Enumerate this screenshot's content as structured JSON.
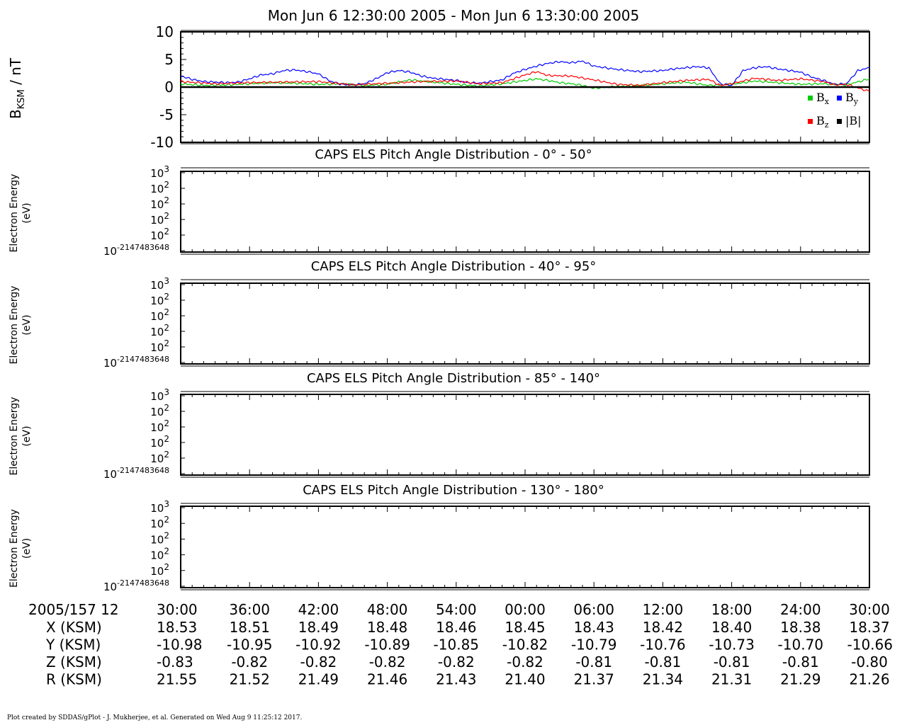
{
  "title": "Mon Jun 6 12:30:00 2005 - Mon Jun 6 13:30:00 2005",
  "footer": "Plot created by SDDAS/gPlot - J. Mukherjee, et al.  Generated on Wed Aug 9 11:25:12 2017.",
  "chart_data": [
    {
      "type": "line",
      "ylabel_main": "B",
      "ylabel_sub": "KSM",
      "ylabel_unit": " / nT",
      "ylim": [
        -10,
        10
      ],
      "yticks": [
        10,
        5,
        0,
        -5,
        -10
      ],
      "x_range_minutes": [
        0,
        60
      ],
      "legend_position": "bottom-right",
      "series": [
        {
          "name": "Bx",
          "color": "#00cc00",
          "x": [
            0,
            2,
            4,
            6,
            8,
            10,
            12,
            14,
            16,
            18,
            20,
            22,
            24,
            26,
            28,
            30,
            31,
            32,
            33,
            34,
            35,
            36,
            38,
            40,
            42,
            44,
            46,
            48,
            50,
            52,
            54,
            56,
            58,
            60
          ],
          "y": [
            0.6,
            0.3,
            0.4,
            0.6,
            0.8,
            0.7,
            0.5,
            0.6,
            0.3,
            0.5,
            1.3,
            0.9,
            0.5,
            0.2,
            0.6,
            1.2,
            1.5,
            1.2,
            0.8,
            0.6,
            0.3,
            -0.2,
            0.1,
            0.3,
            0.6,
            0.9,
            0.3,
            0.5,
            1.1,
            0.8,
            0.5,
            0.6,
            0.4,
            1.5
          ]
        },
        {
          "name": "By",
          "color": "#0000ff",
          "x": [
            0,
            1,
            2,
            3,
            4,
            5,
            6,
            7,
            8,
            9,
            10,
            11,
            12,
            13,
            14,
            15,
            16,
            17,
            18,
            19,
            20,
            21,
            22,
            23,
            24,
            25,
            26,
            27,
            28,
            29,
            30,
            31,
            32,
            33,
            34,
            35,
            36,
            37,
            38,
            39,
            40,
            41,
            42,
            43,
            44,
            45,
            46,
            47,
            48,
            49,
            50,
            51,
            52,
            53,
            54,
            55,
            56,
            57,
            58,
            59,
            60
          ],
          "y": [
            2.0,
            1.4,
            1.0,
            0.9,
            0.8,
            0.9,
            1.5,
            2.2,
            2.4,
            3.0,
            3.1,
            2.8,
            2.4,
            1.1,
            0.5,
            0.4,
            0.6,
            1.5,
            2.6,
            3.0,
            2.7,
            2.0,
            1.6,
            1.4,
            1.2,
            0.8,
            0.7,
            1.0,
            1.3,
            2.5,
            3.2,
            3.8,
            4.3,
            4.6,
            4.4,
            4.7,
            3.8,
            3.5,
            3.2,
            3.0,
            2.8,
            2.9,
            3.0,
            3.3,
            3.5,
            3.7,
            3.5,
            0.6,
            0.3,
            3.0,
            3.5,
            3.7,
            3.3,
            3.0,
            2.7,
            1.8,
            1.2,
            0.5,
            0.6,
            3.0,
            3.5
          ]
        },
        {
          "name": "Bz",
          "color": "#ff0000",
          "x": [
            0,
            3,
            6,
            9,
            12,
            15,
            18,
            21,
            24,
            26,
            28,
            30,
            31,
            32,
            34,
            36,
            38,
            40,
            42,
            44,
            46,
            47,
            48,
            50,
            52,
            54,
            56,
            57,
            58,
            60
          ],
          "y": [
            1.0,
            0.6,
            0.8,
            0.9,
            1.0,
            0.4,
            0.7,
            1.0,
            1.1,
            0.6,
            0.8,
            2.2,
            2.8,
            2.1,
            2.0,
            1.3,
            0.5,
            0.3,
            0.8,
            1.2,
            1.4,
            0.3,
            0.6,
            1.6,
            1.2,
            1.5,
            1.0,
            0.4,
            0.5,
            -0.8
          ]
        },
        {
          "name": "|B|",
          "color": "#000000",
          "x": [
            0,
            60
          ],
          "y": [
            0,
            0
          ]
        }
      ]
    },
    {
      "type": "heatmap",
      "title": "CAPS ELS Pitch Angle Distribution - 0° - 50°",
      "ylabel": [
        "Electron Energy",
        "(eV)"
      ],
      "ytick_labels": [
        {
          "base": "10",
          "exp": "3"
        },
        {
          "base": "10",
          "exp": "2"
        },
        {
          "base": "10",
          "exp": "2"
        },
        {
          "base": "10",
          "exp": "2"
        },
        {
          "base": "10",
          "exp": "2"
        },
        {
          "base": "10",
          "exp": "-2147483648"
        }
      ]
    },
    {
      "type": "heatmap",
      "title": "CAPS ELS Pitch Angle Distribution - 40° - 95°",
      "ylabel": [
        "Electron Energy",
        "(eV)"
      ],
      "ytick_labels": [
        {
          "base": "10",
          "exp": "3"
        },
        {
          "base": "10",
          "exp": "2"
        },
        {
          "base": "10",
          "exp": "2"
        },
        {
          "base": "10",
          "exp": "2"
        },
        {
          "base": "10",
          "exp": "2"
        },
        {
          "base": "10",
          "exp": "-2147483648"
        }
      ]
    },
    {
      "type": "heatmap",
      "title": "CAPS ELS Pitch Angle Distribution - 85° - 140°",
      "ylabel": [
        "Electron Energy",
        "(eV)"
      ],
      "ytick_labels": [
        {
          "base": "10",
          "exp": "3"
        },
        {
          "base": "10",
          "exp": "2"
        },
        {
          "base": "10",
          "exp": "2"
        },
        {
          "base": "10",
          "exp": "2"
        },
        {
          "base": "10",
          "exp": "2"
        },
        {
          "base": "10",
          "exp": "-2147483648"
        }
      ]
    },
    {
      "type": "heatmap",
      "title": "CAPS ELS Pitch Angle Distribution - 130° - 180°",
      "ylabel": [
        "Electron Energy",
        "(eV)"
      ],
      "ytick_labels": [
        {
          "base": "10",
          "exp": "3"
        },
        {
          "base": "10",
          "exp": "2"
        },
        {
          "base": "10",
          "exp": "2"
        },
        {
          "base": "10",
          "exp": "2"
        },
        {
          "base": "10",
          "exp": "2"
        },
        {
          "base": "10",
          "exp": "-2147483648"
        }
      ]
    }
  ],
  "ephemeris": {
    "date_label": "2005/157 12",
    "time_ticks": [
      "30:00",
      "36:00",
      "42:00",
      "48:00",
      "54:00",
      "00:00",
      "06:00",
      "12:00",
      "18:00",
      "24:00",
      "30:00"
    ],
    "rows": [
      {
        "label": "X (KSM)",
        "values": [
          "18.53",
          "18.51",
          "18.49",
          "18.48",
          "18.46",
          "18.45",
          "18.43",
          "18.42",
          "18.40",
          "18.38",
          "18.37"
        ]
      },
      {
        "label": "Y (KSM)",
        "values": [
          "-10.98",
          "-10.95",
          "-10.92",
          "-10.89",
          "-10.85",
          "-10.82",
          "-10.79",
          "-10.76",
          "-10.73",
          "-10.70",
          "-10.66"
        ]
      },
      {
        "label": "Z (KSM)",
        "values": [
          "-0.83",
          "-0.82",
          "-0.82",
          "-0.82",
          "-0.82",
          "-0.82",
          "-0.81",
          "-0.81",
          "-0.81",
          "-0.81",
          "-0.80"
        ]
      },
      {
        "label": "R (KSM)",
        "values": [
          "21.55",
          "21.52",
          "21.49",
          "21.46",
          "21.43",
          "21.40",
          "21.37",
          "21.34",
          "21.31",
          "21.29",
          "21.26"
        ]
      }
    ]
  }
}
